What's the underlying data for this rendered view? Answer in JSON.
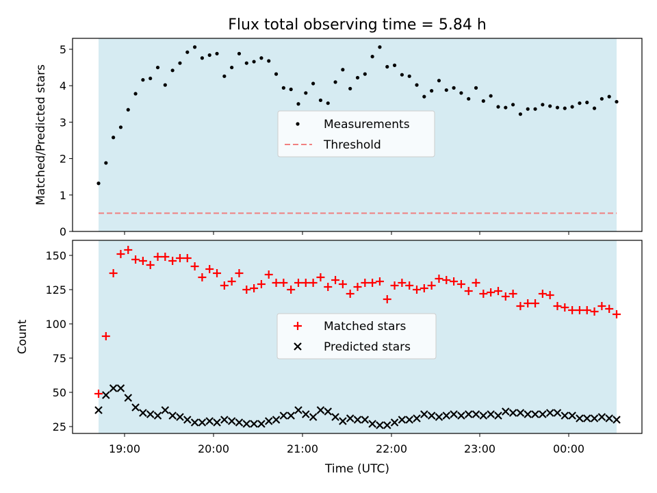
{
  "chart_data": {
    "title": "Flux total observing time = 5.84 h",
    "xlabel": "Time (UTC)",
    "x_tick_labels": [
      "19:00",
      "20:00",
      "21:00",
      "22:00",
      "23:00",
      "00:00"
    ],
    "panels": [
      {
        "type": "scatter",
        "ylabel": "Matched/Predicted stars",
        "ylim": [
          0,
          5.3
        ],
        "y_ticks": [
          0,
          1,
          2,
          3,
          4,
          5
        ],
        "shaded_region_color": "#add8e6",
        "legend_position": "center",
        "legend": [
          "Measurements",
          "Threshold"
        ],
        "threshold": 0.5,
        "series": [
          {
            "name": "Measurements",
            "color": "#000000",
            "marker": "dot",
            "values": [
              1.32,
              1.88,
              2.58,
              2.86,
              3.34,
              3.78,
              4.16,
              4.2,
              4.5,
              4.02,
              4.42,
              4.62,
              4.92,
              5.06,
              4.76,
              4.84,
              4.88,
              4.26,
              4.5,
              4.88,
              4.62,
              4.66,
              4.76,
              4.68,
              4.32,
              3.94,
              3.9,
              3.5,
              3.8,
              4.06,
              3.6,
              3.52,
              4.1,
              4.44,
              3.92,
              4.22,
              4.32,
              4.8,
              5.06,
              4.52,
              4.56,
              4.3,
              4.26,
              4.02,
              3.7,
              3.86,
              4.14,
              3.88,
              3.94,
              3.8,
              3.64,
              3.94,
              3.58,
              3.72,
              3.42,
              3.4,
              3.48,
              3.22,
              3.36,
              3.36,
              3.48,
              3.44,
              3.4,
              3.38,
              3.42,
              3.52,
              3.54,
              3.38,
              3.64,
              3.7,
              3.56
            ]
          },
          {
            "name": "Threshold",
            "color": "#f08080",
            "style": "dashed",
            "values": [
              0.5
            ]
          }
        ]
      },
      {
        "type": "scatter",
        "ylabel": "Count",
        "ylim": [
          20,
          161
        ],
        "y_ticks": [
          25,
          50,
          75,
          100,
          125,
          150
        ],
        "shaded_region_color": "#add8e6",
        "legend_position": "center",
        "legend": [
          "Matched stars",
          "Predicted stars"
        ],
        "series": [
          {
            "name": "Matched stars",
            "color": "#ff0000",
            "marker": "plus",
            "values": [
              49,
              91,
              137,
              151,
              154,
              147,
              146,
              143,
              149,
              149,
              146,
              148,
              148,
              142,
              134,
              140,
              137,
              128,
              131,
              137,
              125,
              126,
              129,
              136,
              130,
              130,
              125,
              130,
              130,
              130,
              134,
              127,
              132,
              129,
              122,
              127,
              130,
              130,
              131,
              118,
              128,
              130,
              128,
              125,
              126,
              128,
              133,
              132,
              131,
              129,
              124,
              130,
              122,
              123,
              124,
              120,
              122,
              113,
              115,
              115,
              122,
              121,
              113,
              112,
              110,
              110,
              110,
              109,
              113,
              111,
              107
            ]
          },
          {
            "name": "Predicted stars",
            "color": "#000000",
            "marker": "x",
            "values": [
              37,
              48,
              53,
              53,
              46,
              39,
              35,
              34,
              33,
              37,
              33,
              32,
              30,
              28,
              28,
              29,
              28,
              30,
              29,
              28,
              27,
              27,
              27,
              29,
              30,
              33,
              33,
              37,
              34,
              32,
              37,
              36,
              32,
              29,
              31,
              30,
              30,
              27,
              26,
              26,
              28,
              30,
              30,
              31,
              34,
              33,
              32,
              33,
              34,
              33,
              34,
              34,
              33,
              34,
              33,
              36,
              35,
              35,
              34,
              34,
              34,
              35,
              35,
              33,
              33,
              31,
              31,
              31,
              32,
              31,
              30
            ]
          }
        ]
      }
    ]
  }
}
